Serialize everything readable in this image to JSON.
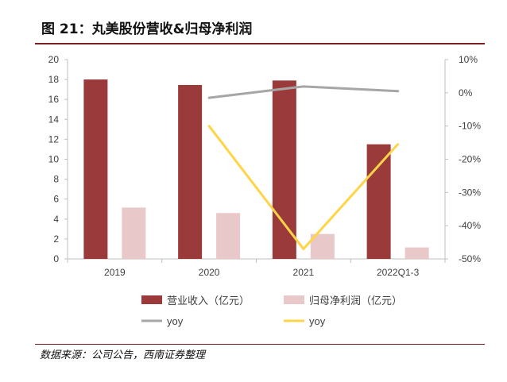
{
  "figure": {
    "title_prefix": "图 21：",
    "title": "丸美股份营收&归母净利润",
    "source": "数据来源：公司公告，西南证券整理"
  },
  "colors": {
    "revenue": "#9b3a3a",
    "net_profit": "#e8c8c8",
    "revenue_yoy": "#a6a6a6",
    "net_profit_yoy": "#ffd447",
    "rule": "#7a1f1f"
  },
  "chart_data": {
    "type": "bar",
    "categories": [
      "2019",
      "2020",
      "2021",
      "2022Q1-3"
    ],
    "series": [
      {
        "name": "营业收入（亿元）",
        "kind": "bar",
        "axis": "left",
        "values": [
          18.0,
          17.45,
          17.9,
          11.5
        ]
      },
      {
        "name": "归母净利润（亿元）",
        "kind": "bar",
        "axis": "left",
        "values": [
          5.15,
          4.6,
          2.5,
          1.15
        ]
      },
      {
        "name": "yoy",
        "kind": "line",
        "axis": "right",
        "values": [
          null,
          -1.5,
          1.9,
          0.5
        ]
      },
      {
        "name": "yoy",
        "kind": "line",
        "axis": "right",
        "values": [
          null,
          -10.0,
          -47.0,
          -15.5
        ]
      }
    ],
    "y_left": {
      "min": 0,
      "max": 20,
      "ticks": [
        "0",
        "2",
        "4",
        "6",
        "8",
        "10",
        "12",
        "14",
        "16",
        "18",
        "20"
      ]
    },
    "y_right": {
      "min": -50,
      "max": 10,
      "ticks": [
        "-50%",
        "-40%",
        "-30%",
        "-20%",
        "-10%",
        "0%",
        "10%"
      ]
    },
    "grid": false,
    "legend_position": "bottom"
  }
}
